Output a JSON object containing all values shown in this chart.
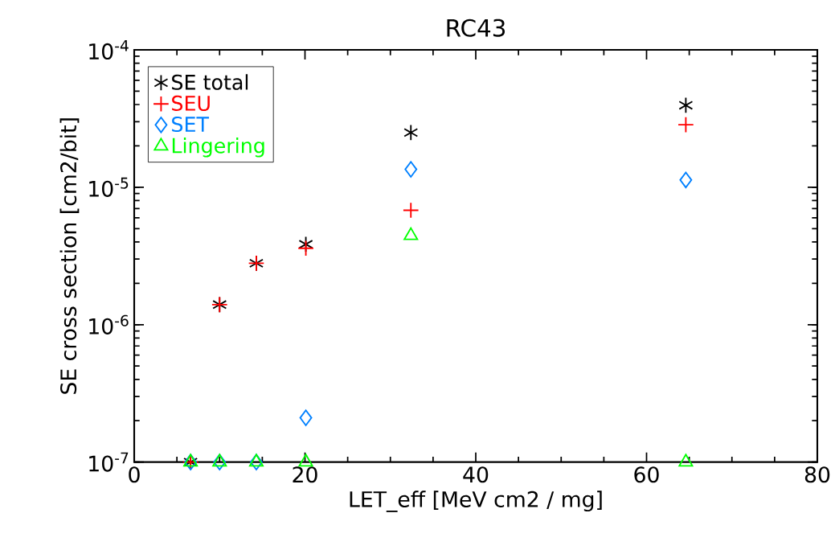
{
  "chart_data": {
    "type": "scatter",
    "title": "RC43",
    "xlabel": "LET_eff [MeV cm2 / mg]",
    "ylabel": "SE cross section [cm2/bit]",
    "x": [
      6.6,
      10.0,
      14.3,
      20.1,
      32.4,
      64.6
    ],
    "series": [
      {
        "name": "SE total",
        "color": "#000000",
        "values": [
          1e-07,
          1.4e-06,
          2.8e-06,
          3.85e-06,
          2.5e-05,
          3.95e-05
        ]
      },
      {
        "name": "SEU",
        "color": "#ff0000",
        "marker": "cross",
        "values": [
          1e-07,
          1.4e-06,
          2.8e-06,
          3.6e-06,
          6.8e-06,
          2.85e-05
        ]
      },
      {
        "name": "SET",
        "color": "#0080ff",
        "marker": "diamond",
        "values": [
          1e-07,
          1e-07,
          1e-07,
          2.1e-07,
          1.35e-05,
          1.13e-05
        ]
      },
      {
        "name": "Lingering",
        "color": "#00ff00",
        "marker": "triangle",
        "values": [
          1e-07,
          1e-07,
          1e-07,
          1e-07,
          4.45e-06,
          1e-07
        ]
      }
    ],
    "xlim": [
      0,
      80
    ],
    "xticks": [
      0,
      20,
      40,
      60,
      80
    ],
    "ylim": [
      1e-07,
      0.0001
    ],
    "log": "y",
    "yticks": [
      {
        "value": 1e-07,
        "label": "10$^{-7}$"
      },
      {
        "value": 1e-06,
        "label": "10$^{-6}$"
      },
      {
        "value": 1e-05,
        "label": "10$^{-5}$"
      },
      {
        "value": 0.0001,
        "label": "10$^{-4}$"
      }
    ],
    "grid": false,
    "legend": "top left"
  }
}
